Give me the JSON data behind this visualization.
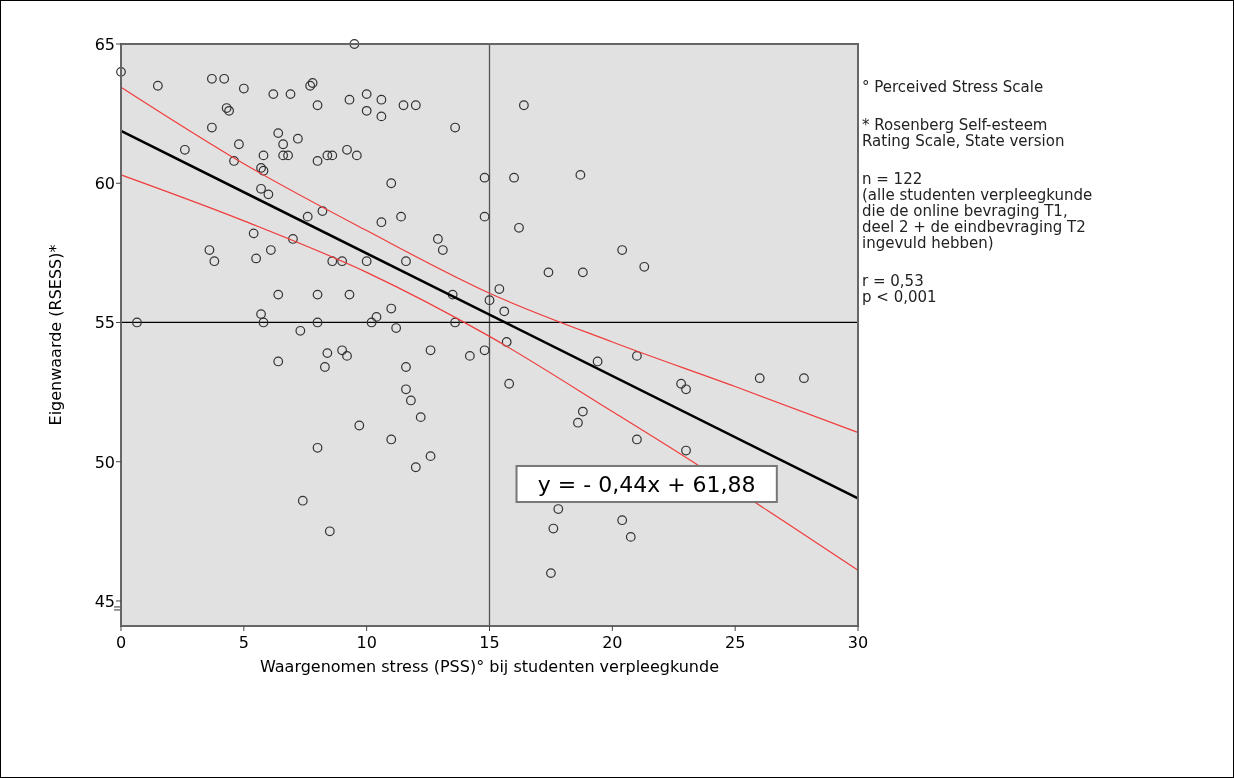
{
  "chart_data": {
    "type": "scatter",
    "xlabel": "Waargenomen stress (PSS)° bij studenten verpleegkunde",
    "ylabel": "Eigenwaarde (RSESS)*",
    "xlim": [
      0,
      30
    ],
    "xticks": [
      0,
      5,
      10,
      15,
      20,
      25,
      30
    ],
    "ylim": [
      44.1,
      65
    ],
    "yticks": [
      45,
      50,
      55,
      60,
      65
    ],
    "series": [
      {
        "marker": "circle",
        "color": "#333333",
        "x": [
          0,
          1.5,
          3.7,
          4.2,
          4.3,
          4.4,
          5.0,
          6.2,
          6.9,
          7.7,
          7.8,
          8.0,
          9.3,
          10.0,
          10.0,
          10.6,
          10.6,
          11.5,
          12.0,
          13.6,
          9.5,
          3.7,
          2.6,
          6.4,
          7.2,
          4.6,
          4.8,
          5.8,
          6.6,
          6.6,
          6.8,
          5.7,
          5.8,
          6.0,
          5.7,
          8.0,
          8.4,
          8.6,
          9.2,
          9.6,
          11.0,
          14.8,
          16.0,
          16.4,
          18.7,
          14.8,
          5.4,
          7.6,
          8.2,
          7.0,
          10.6,
          11.4,
          12.9,
          13.1,
          16.2,
          3.6,
          3.8,
          5.5,
          6.1,
          8.6,
          9.0,
          10.0,
          11.6,
          17.4,
          18.8,
          20.4,
          21.3,
          15.4,
          15.0,
          15.6,
          13.5,
          6.4,
          8.0,
          9.3,
          5.7,
          5.8,
          0.65,
          8.0,
          10.2,
          10.4,
          11.0,
          11.2,
          13.6,
          7.3,
          6.4,
          8.4,
          8.3,
          9.0,
          9.2,
          12.6,
          11.6,
          14.2,
          14.8,
          11.6,
          11.8,
          12.2,
          9.7,
          11.0,
          12.6,
          12.0,
          8.0,
          7.4,
          8.5,
          15.7,
          15.8,
          19.4,
          21.0,
          22.8,
          23.0,
          26.0,
          27.8,
          18.8,
          18.6,
          21.0,
          23.0,
          17.8,
          17.6,
          20.4,
          20.75,
          17.5
        ],
        "values": [
          64.0,
          63.5,
          63.75,
          63.75,
          62.7,
          62.6,
          63.4,
          63.2,
          63.2,
          63.5,
          63.6,
          62.8,
          63.0,
          63.2,
          62.6,
          63.0,
          62.4,
          62.8,
          62.8,
          62.0,
          65.0,
          62.0,
          61.2,
          61.8,
          61.6,
          60.8,
          61.4,
          61.0,
          61.4,
          61.0,
          61.0,
          60.55,
          60.45,
          59.6,
          59.8,
          60.8,
          61.0,
          61.0,
          61.2,
          61.0,
          60.0,
          60.2,
          60.2,
          62.8,
          60.3,
          58.8,
          58.2,
          58.8,
          59.0,
          58.0,
          58.6,
          58.8,
          58.0,
          57.6,
          58.4,
          57.6,
          57.2,
          57.3,
          57.6,
          57.2,
          57.2,
          57.2,
          57.2,
          56.8,
          56.8,
          57.6,
          57.0,
          56.2,
          55.8,
          55.4,
          56.0,
          56.0,
          56.0,
          56.0,
          55.3,
          55.0,
          55.0,
          55.0,
          55.0,
          55.2,
          55.5,
          54.8,
          55.0,
          54.7,
          53.6,
          53.9,
          53.4,
          54.0,
          53.8,
          54.0,
          53.4,
          53.8,
          54.0,
          52.6,
          52.2,
          51.6,
          51.3,
          50.8,
          50.2,
          49.8,
          50.5,
          48.6,
          47.5,
          54.3,
          52.8,
          53.6,
          53.8,
          52.8,
          52.6,
          53.0,
          53.0,
          51.8,
          51.4,
          50.8,
          50.4,
          48.3,
          47.6,
          47.9,
          47.3,
          46.0
        ]
      },
      {
        "type": "line",
        "marker": "none",
        "color": "#000000",
        "x": [
          0,
          30
        ],
        "values": [
          61.88,
          48.68
        ]
      },
      {
        "type": "line",
        "marker": "none",
        "color": "#f03c3c",
        "x": [
          0,
          5,
          10,
          15,
          20,
          25,
          30
        ],
        "values": [
          63.45,
          60.7,
          58.3,
          56.05,
          54.3,
          52.7,
          51.05
        ]
      },
      {
        "type": "line",
        "marker": "none",
        "color": "#f03c3c",
        "x": [
          0,
          5,
          10,
          15,
          20,
          23,
          27,
          30
        ],
        "values": [
          60.3,
          58.65,
          56.8,
          54.5,
          51.8,
          50.15,
          47.85,
          46.1
        ]
      }
    ],
    "ref_lines": [
      {
        "axis": "x",
        "value": 15,
        "color": "#555555"
      },
      {
        "axis": "y",
        "value": 55,
        "color": "#000000"
      }
    ],
    "annotations": [
      "y = - 0,44x + 61,88",
      "° Perceived Stress Scale",
      "* Rosenberg Self-esteem\nRating Scale, State version",
      "n = 122\n(alle studenten verpleegkunde\ndie de online bevraging T1,\ndeel 2 + de eindbevraging T2\ningevuld hebben)",
      "r = 0,53\np < 0,001"
    ]
  }
}
